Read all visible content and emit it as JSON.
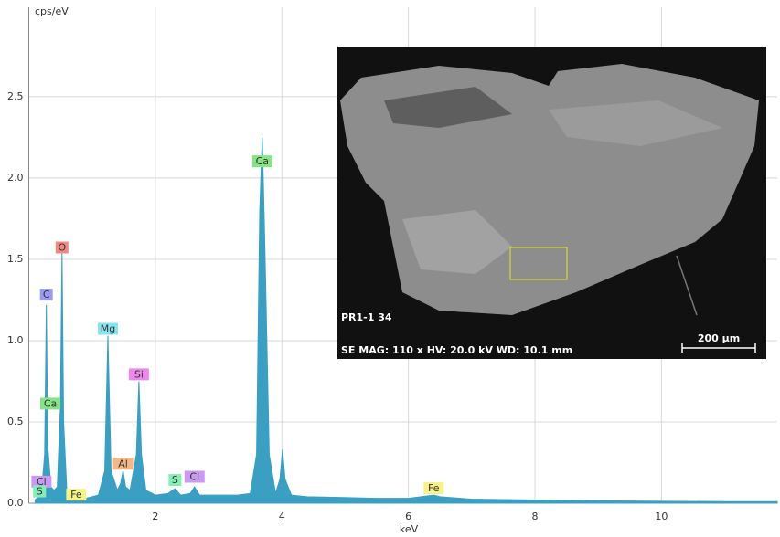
{
  "chart_data": {
    "type": "area",
    "y_label": "cps/eV",
    "x_label": "keV",
    "x": [
      0.1,
      0.2,
      0.25,
      0.277,
      0.3,
      0.35,
      0.4,
      0.45,
      0.5,
      0.525,
      0.55,
      0.6,
      0.7,
      0.8,
      0.9,
      1.0,
      1.1,
      1.2,
      1.25,
      1.3,
      1.4,
      1.45,
      1.49,
      1.53,
      1.6,
      1.7,
      1.74,
      1.78,
      1.85,
      2.0,
      2.2,
      2.31,
      2.4,
      2.55,
      2.62,
      2.7,
      3.0,
      3.3,
      3.5,
      3.6,
      3.65,
      3.69,
      3.73,
      3.8,
      3.9,
      3.97,
      4.01,
      4.05,
      4.15,
      4.4,
      5.0,
      5.5,
      6.0,
      6.3,
      6.4,
      6.5,
      7.0,
      8.0,
      9.0,
      10.0,
      11.0,
      11.83
    ],
    "values": [
      0.02,
      0.06,
      0.3,
      1.22,
      0.35,
      0.1,
      0.08,
      0.1,
      0.6,
      1.55,
      0.5,
      0.08,
      0.03,
      0.02,
      0.03,
      0.04,
      0.05,
      0.2,
      1.03,
      0.2,
      0.08,
      0.12,
      0.2,
      0.1,
      0.08,
      0.3,
      0.75,
      0.3,
      0.08,
      0.05,
      0.06,
      0.09,
      0.05,
      0.06,
      0.1,
      0.05,
      0.05,
      0.05,
      0.06,
      0.3,
      1.8,
      2.25,
      1.6,
      0.3,
      0.06,
      0.15,
      0.33,
      0.15,
      0.05,
      0.04,
      0.035,
      0.03,
      0.03,
      0.045,
      0.05,
      0.04,
      0.025,
      0.02,
      0.015,
      0.012,
      0.01,
      0.01
    ],
    "color": "#3a9fc2",
    "xlim": [
      0,
      11.83
    ],
    "ylim": [
      0,
      3.05
    ],
    "xticks": [
      2,
      4,
      6,
      8,
      10
    ],
    "yticks": [
      {
        "value": 0,
        "label": "0.0"
      },
      0.5,
      {
        "value": 1,
        "label": "1.0"
      },
      1.5,
      {
        "value": 2,
        "label": "2.0"
      },
      2.5
    ],
    "grid": true,
    "peak_labels": [
      {
        "text": "Ca",
        "x": 3.69,
        "y": 2.1,
        "color": "#86e486"
      },
      {
        "text": "O",
        "x": 0.525,
        "y": 1.57,
        "color": "#f28a84"
      },
      {
        "text": "C",
        "x": 0.277,
        "y": 1.28,
        "color": "#9a9af2"
      },
      {
        "text": "Mg",
        "x": 1.25,
        "y": 1.07,
        "color": "#86e6f0"
      },
      {
        "text": "Si",
        "x": 1.74,
        "y": 0.79,
        "color": "#ee88ee"
      },
      {
        "text": "Ca",
        "x": 0.34,
        "y": 0.61,
        "color": "#86e486"
      },
      {
        "text": "Al",
        "x": 1.49,
        "y": 0.24,
        "color": "#f2b888"
      },
      {
        "text": "S",
        "x": 2.31,
        "y": 0.14,
        "color": "#86eeb4"
      },
      {
        "text": "Cl",
        "x": 2.62,
        "y": 0.16,
        "color": "#c99af2"
      },
      {
        "text": "Cl",
        "x": 0.2,
        "y": 0.13,
        "color": "#c99af2"
      },
      {
        "text": "S",
        "x": 0.17,
        "y": 0.07,
        "color": "#86eeb4"
      },
      {
        "text": "Fe",
        "x": 0.75,
        "y": 0.05,
        "color": "#f6f28a"
      },
      {
        "text": "Fe",
        "x": 6.4,
        "y": 0.09,
        "color": "#f6f28a"
      }
    ]
  },
  "image": {
    "sample": "PR1-1 34",
    "info": "SE  MAG: 110 x  HV: 20.0 kV  WD: 10.1 mm",
    "scale": "200 µm"
  }
}
